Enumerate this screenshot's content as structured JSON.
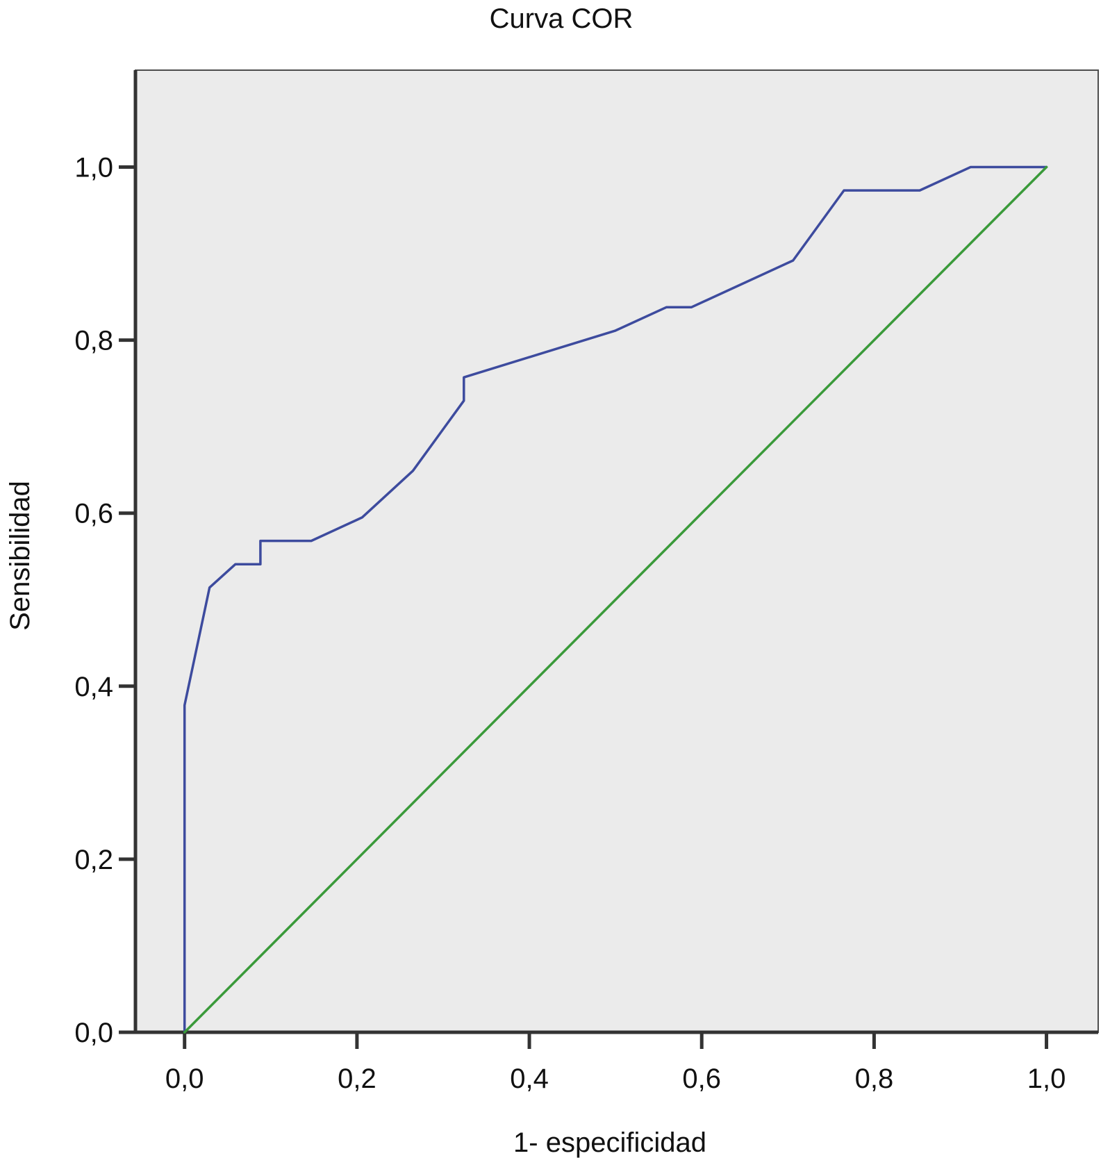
{
  "chart_data": {
    "type": "line",
    "title": "Curva COR",
    "xlabel": "1- especificidad",
    "ylabel": "Sensibilidad",
    "xlim": [
      -0.057,
      1.06
    ],
    "ylim": [
      0,
      1.112
    ],
    "x_ticks": [
      {
        "value": 0.0,
        "label": "0,0"
      },
      {
        "value": 0.2,
        "label": "0,2"
      },
      {
        "value": 0.4,
        "label": "0,4"
      },
      {
        "value": 0.6,
        "label": "0,6"
      },
      {
        "value": 0.8,
        "label": "0,8"
      },
      {
        "value": 1.0,
        "label": "1,0"
      }
    ],
    "y_ticks": [
      {
        "value": 0.0,
        "label": "0,0"
      },
      {
        "value": 0.2,
        "label": "0,2"
      },
      {
        "value": 0.4,
        "label": "0,4"
      },
      {
        "value": 0.6,
        "label": "0,6"
      },
      {
        "value": 0.8,
        "label": "0,8"
      },
      {
        "value": 1.0,
        "label": "1,0"
      }
    ],
    "grid": false,
    "legend": "none",
    "plot_background": "#ebebeb",
    "series": [
      {
        "color": "#3d4b9e",
        "x": [
          0.0,
          0.0,
          0.029,
          0.059,
          0.088,
          0.088,
          0.147,
          0.206,
          0.265,
          0.324,
          0.324,
          0.5,
          0.559,
          0.588,
          0.706,
          0.765,
          0.853,
          0.912,
          1.0
        ],
        "y": [
          0.0,
          0.378,
          0.514,
          0.541,
          0.541,
          0.568,
          0.568,
          0.595,
          0.649,
          0.73,
          0.757,
          0.811,
          0.838,
          0.838,
          0.892,
          0.973,
          0.973,
          1.0,
          1.0
        ]
      },
      {
        "color": "#3a9a3a",
        "x": [
          0.0,
          1.0
        ],
        "y": [
          0.0,
          1.0
        ]
      }
    ]
  }
}
